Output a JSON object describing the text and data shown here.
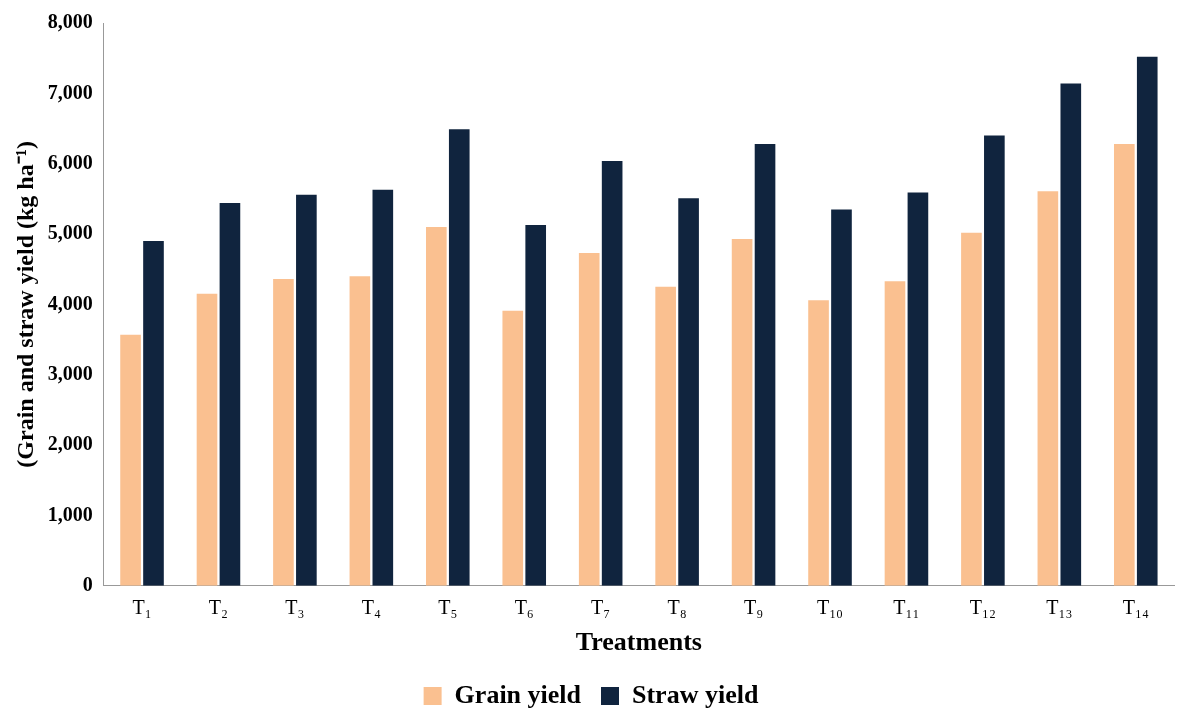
{
  "chart_data": {
    "type": "bar",
    "xlabel": "Treatments",
    "ylabel": "(Grain and straw yield (kg ha⁻¹)",
    "categories": [
      "T₁",
      "T₂",
      "T₃",
      "T₄",
      "T₅",
      "T₆",
      "T₇",
      "T₈",
      "T₉",
      "T₁₀",
      "T₁₁",
      "T₁₂",
      "T₁₃",
      "T₁₄"
    ],
    "series": [
      {
        "name": "Grain yield",
        "color": "#fac090",
        "values": [
          3570,
          4150,
          4360,
          4400,
          5100,
          3910,
          4730,
          4250,
          4930,
          4060,
          4330,
          5020,
          5610,
          6280
        ]
      },
      {
        "name": "Straw yield",
        "color": "#10243e",
        "values": [
          4900,
          5440,
          5560,
          5630,
          6490,
          5130,
          6040,
          5510,
          6280,
          5350,
          5590,
          6400,
          7140,
          7520
        ]
      }
    ],
    "ylim": [
      0,
      8000
    ],
    "yticks": [
      {
        "value": 0,
        "label": "0"
      },
      {
        "value": 1000,
        "label": "1,000"
      },
      {
        "value": 2000,
        "label": "2,000"
      },
      {
        "value": 3000,
        "label": "3,000"
      },
      {
        "value": 4000,
        "label": "4,000"
      },
      {
        "value": 5000,
        "label": "5,000"
      },
      {
        "value": 6000,
        "label": "6,000"
      },
      {
        "value": 7000,
        "label": "7,000"
      },
      {
        "value": 8000,
        "label": "8,000"
      }
    ],
    "grid": false,
    "legend": "bottom"
  }
}
